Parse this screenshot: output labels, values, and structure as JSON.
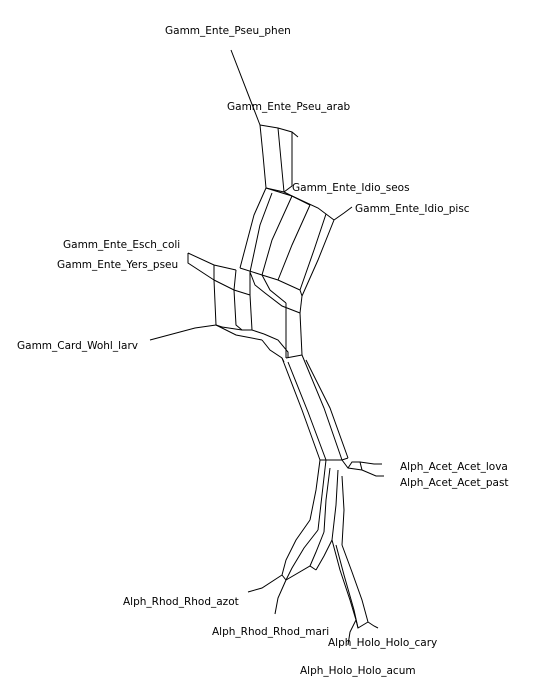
{
  "diagram": {
    "type": "phylogenetic split network",
    "line_color": "#000000",
    "background": "#ffffff",
    "taxa": [
      {
        "id": "pseu_phen",
        "label": "Gamm_Ente_Pseu_phen"
      },
      {
        "id": "pseu_arab",
        "label": "Gamm_Ente_Pseu_arab"
      },
      {
        "id": "idio_seos",
        "label": "Gamm_Ente_Idio_seos"
      },
      {
        "id": "idio_pisc",
        "label": "Gamm_Ente_Idio_pisc"
      },
      {
        "id": "esch_coli",
        "label": "Gamm_Ente_Esch_coli"
      },
      {
        "id": "yers_pseu",
        "label": "Gamm_Ente_Yers_pseu"
      },
      {
        "id": "wohl_larv",
        "label": "Gamm_Card_Wohl_larv"
      },
      {
        "id": "acet_lova",
        "label": "Alph_Acet_Acet_lova"
      },
      {
        "id": "acet_past",
        "label": "Alph_Acet_Acet_past"
      },
      {
        "id": "rhod_azot",
        "label": "Alph_Rhod_Rhod_azot"
      },
      {
        "id": "rhod_mari",
        "label": "Alph_Rhod_Rhod_mari"
      },
      {
        "id": "holo_cary",
        "label": "Alph_Holo_Holo_cary"
      },
      {
        "id": "holo_acum",
        "label": "Alph_Holo_Holo_acum"
      }
    ]
  }
}
